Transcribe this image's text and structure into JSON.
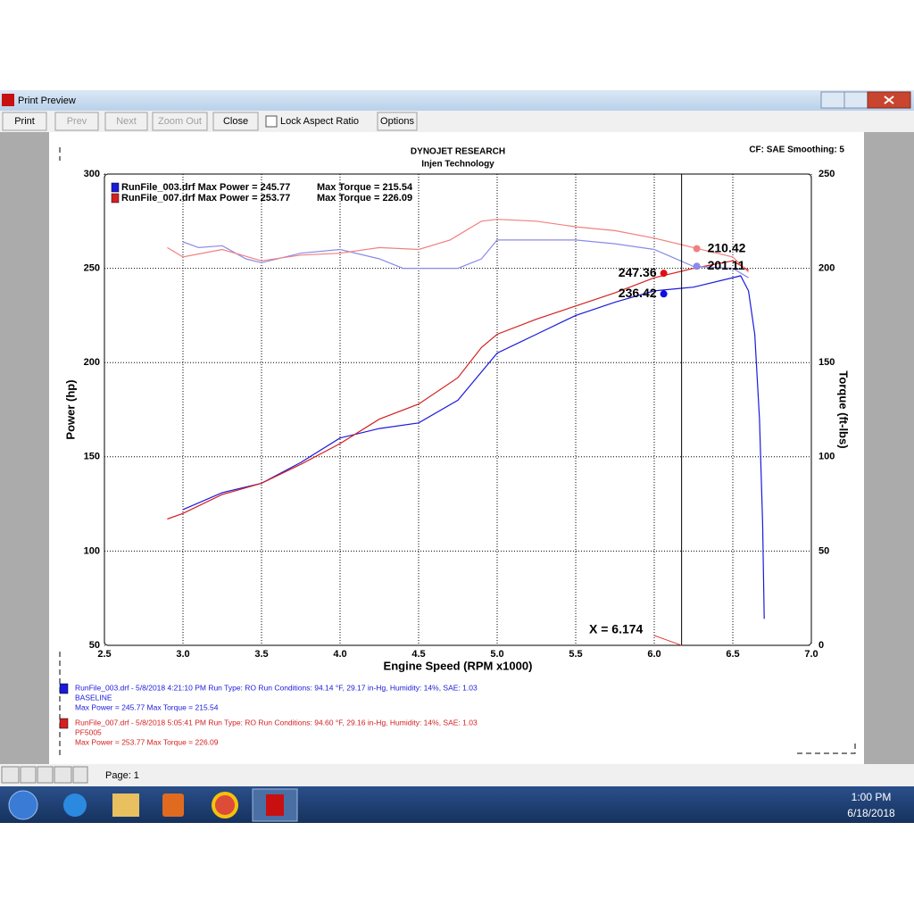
{
  "window": {
    "title": "Print Preview"
  },
  "toolbar": {
    "buttons": [
      {
        "label": "Print",
        "enabled": true
      },
      {
        "label": "Prev",
        "enabled": false
      },
      {
        "label": "Next",
        "enabled": false
      },
      {
        "label": "Zoom Out",
        "enabled": false
      },
      {
        "label": "Close",
        "enabled": true
      }
    ],
    "checkbox": "Lock Aspect Ratio",
    "options": "Options"
  },
  "chart_data": {
    "type": "line",
    "title": "DYNOJET RESEARCH",
    "subtitle": "Injen Technology",
    "settings": "CF: SAE  Smoothing: 5",
    "x_label": "Engine Speed (RPM x1000)",
    "y_label": "Power (hp)",
    "y2_label": "Torque (ft-lbs)",
    "xlim": [
      2.5,
      7.0
    ],
    "xticks": [
      2.5,
      {
        "value": 3,
        "label": "3.0"
      },
      3.5,
      {
        "value": 4,
        "label": "4.0"
      },
      4.5,
      {
        "value": 5,
        "label": "5.0"
      },
      5.5,
      {
        "value": 6,
        "label": "6.0"
      },
      6.5,
      {
        "value": 7,
        "label": "7.0"
      }
    ],
    "ylim": [
      50,
      300
    ],
    "yticks": [
      50,
      100,
      150,
      200,
      250,
      300
    ],
    "y2lim": [
      0,
      250
    ],
    "y2ticks": [
      0,
      50,
      100,
      150,
      200,
      250
    ],
    "grid": true,
    "legend": [
      {
        "power": "RunFile_003.drf Max Power = 245.77",
        "torque": "Max Torque = 215.54",
        "color": "#1a1adb"
      },
      {
        "power": "RunFile_007.drf Max Power = 253.77",
        "torque": "Max Torque = 226.09",
        "color": "#d42020"
      }
    ],
    "series": [
      {
        "color": "#1a1adb",
        "x": [
          3.0,
          3.25,
          3.5,
          3.75,
          4.0,
          4.25,
          4.5,
          4.75,
          5.0,
          5.25,
          5.5,
          5.75,
          6.0,
          6.25,
          6.55,
          6.6,
          6.64,
          6.67,
          6.69,
          6.7
        ],
        "values": [
          122,
          131,
          136,
          147,
          160,
          165,
          168,
          180,
          205,
          215,
          225,
          232,
          238,
          240,
          246,
          238,
          215,
          170,
          115,
          64
        ]
      },
      {
        "color": "#d42020",
        "x": [
          2.9,
          3.0,
          3.25,
          3.5,
          3.75,
          4.0,
          4.25,
          4.5,
          4.75,
          4.9,
          5.0,
          5.25,
          5.5,
          5.75,
          6.0,
          6.25,
          6.5,
          6.6
        ],
        "values": [
          117,
          120,
          130,
          136,
          146,
          157,
          170,
          178,
          192,
          208,
          215,
          223,
          230,
          237,
          245,
          250,
          254,
          249
        ]
      },
      {
        "color": "#8a8ae8",
        "axis": "y2",
        "x": [
          3.0,
          3.1,
          3.25,
          3.4,
          3.5,
          3.75,
          4.0,
          4.25,
          4.4,
          4.5,
          4.75,
          4.9,
          5.0,
          5.25,
          5.5,
          5.75,
          6.0,
          6.25,
          6.5,
          6.6
        ],
        "values": [
          214,
          211,
          212,
          205,
          203,
          208,
          210,
          205,
          200,
          200,
          200,
          205,
          215,
          215,
          215,
          213,
          210,
          201,
          200,
          195
        ]
      },
      {
        "color": "#f08080",
        "axis": "y2",
        "x": [
          2.9,
          3.0,
          3.25,
          3.5,
          3.75,
          4.0,
          4.25,
          4.5,
          4.7,
          4.9,
          5.0,
          5.25,
          5.5,
          5.75,
          6.0,
          6.25,
          6.5,
          6.6
        ],
        "values": [
          211,
          206,
          210,
          204,
          207,
          208,
          211,
          210,
          215,
          225,
          226,
          225,
          222,
          220,
          216,
          211,
          206,
          198
        ]
      }
    ],
    "cursor": {
      "x": 6.174,
      "label": "X = 6.174"
    },
    "annotations": [
      {
        "value": 210.42,
        "axis": "y2",
        "color": "#f08080"
      },
      {
        "value": 201.11,
        "axis": "y2",
        "color": "#8a8ae8"
      },
      {
        "value": 247.36,
        "axis": "y",
        "color": "#e01010"
      },
      {
        "value": 236.42,
        "axis": "y",
        "color": "#1010e0"
      }
    ]
  },
  "footer": {
    "runs": [
      {
        "color": "#1a1adb",
        "lines": [
          "RunFile_003.drf - 5/8/2018 4:21:10 PM  Run Type: RO  Run Conditions: 94.14 °F, 29.17 in-Hg,  Humidity:  14%, SAE: 1.03",
          "BASELINE",
          "Max Power = 245.77  Max Torque = 215.54"
        ]
      },
      {
        "color": "#d42020",
        "lines": [
          "RunFile_007.drf - 5/8/2018 5:05:41 PM  Run Type: RO  Run Conditions: 94.60 °F, 29.16 in-Hg,  Humidity:  14%, SAE: 1.03",
          "PF5005",
          "Max Power = 253.77  Max Torque = 226.09"
        ]
      }
    ]
  },
  "status": {
    "page": "Page: 1"
  },
  "taskbar": {
    "time": "1:00 PM",
    "date": "6/18/2018"
  }
}
